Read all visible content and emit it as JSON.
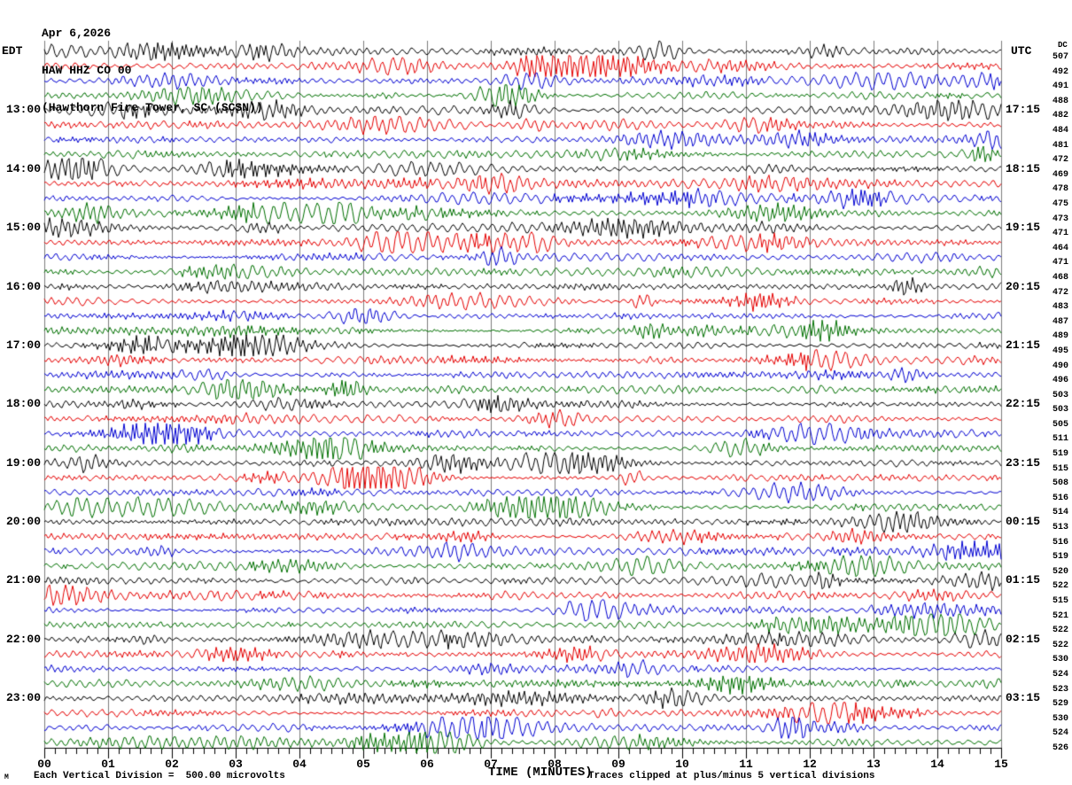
{
  "header": {
    "date_line": "Apr 6,2026",
    "station_line": "HAW HHZ CO 00",
    "location_line": "(Hawthorn Fire Tower, SC (SCSN))"
  },
  "left_axis": {
    "timezone": "EDT"
  },
  "right_axis": {
    "timezone": "UTC",
    "dc_header": "DC"
  },
  "footer": {
    "scale_note": "Each Vertical Division =  500.00 microvolts",
    "axis_title": "TIME (MINUTES)",
    "clip_note": "Traces clipped at plus/minus 5 vertical divisions",
    "corner_mark": "M"
  },
  "chart_data": {
    "type": "line",
    "subtype": "seismogram-helicorder",
    "title": "HAW HHZ CO 00 (Hawthorn Fire Tower, SC (SCSN)) Apr 6,2026",
    "xlabel": "TIME (MINUTES)",
    "x_range_minutes": [
      0,
      15
    ],
    "x_ticks": [
      "00",
      "01",
      "02",
      "03",
      "04",
      "05",
      "06",
      "07",
      "08",
      "09",
      "10",
      "11",
      "12",
      "13",
      "14",
      "15"
    ],
    "minor_ticks_per_minute": 6,
    "minutes_per_row": 15,
    "rows_count": 48,
    "grid": true,
    "grid_color": "#7d7d7d",
    "background_color": "#ffffff",
    "trace_colors": {
      "black": "#000000",
      "red": "#e60000",
      "blue": "#0000d2",
      "green": "#007000"
    },
    "amplitude_scale_microvolts_per_division": 500.0,
    "clip_divisions": 5,
    "rows": [
      {
        "color": "black",
        "dc": 507,
        "edt": "",
        "utc": ""
      },
      {
        "color": "red",
        "dc": 492,
        "edt": "",
        "utc": ""
      },
      {
        "color": "blue",
        "dc": 491,
        "edt": "",
        "utc": ""
      },
      {
        "color": "green",
        "dc": 488,
        "edt": "",
        "utc": ""
      },
      {
        "color": "black",
        "dc": 482,
        "edt": "13:00",
        "utc": "17:15"
      },
      {
        "color": "red",
        "dc": 484,
        "edt": "",
        "utc": ""
      },
      {
        "color": "blue",
        "dc": 481,
        "edt": "",
        "utc": ""
      },
      {
        "color": "green",
        "dc": 472,
        "edt": "",
        "utc": ""
      },
      {
        "color": "black",
        "dc": 469,
        "edt": "14:00",
        "utc": "18:15"
      },
      {
        "color": "red",
        "dc": 478,
        "edt": "",
        "utc": ""
      },
      {
        "color": "blue",
        "dc": 475,
        "edt": "",
        "utc": ""
      },
      {
        "color": "green",
        "dc": 473,
        "edt": "",
        "utc": ""
      },
      {
        "color": "black",
        "dc": 471,
        "edt": "15:00",
        "utc": "19:15"
      },
      {
        "color": "red",
        "dc": 464,
        "edt": "",
        "utc": ""
      },
      {
        "color": "blue",
        "dc": 471,
        "edt": "",
        "utc": ""
      },
      {
        "color": "green",
        "dc": 468,
        "edt": "",
        "utc": ""
      },
      {
        "color": "black",
        "dc": 472,
        "edt": "16:00",
        "utc": "20:15"
      },
      {
        "color": "red",
        "dc": 483,
        "edt": "",
        "utc": ""
      },
      {
        "color": "blue",
        "dc": 487,
        "edt": "",
        "utc": ""
      },
      {
        "color": "green",
        "dc": 489,
        "edt": "",
        "utc": ""
      },
      {
        "color": "black",
        "dc": 495,
        "edt": "17:00",
        "utc": "21:15"
      },
      {
        "color": "red",
        "dc": 490,
        "edt": "",
        "utc": ""
      },
      {
        "color": "blue",
        "dc": 496,
        "edt": "",
        "utc": ""
      },
      {
        "color": "green",
        "dc": 503,
        "edt": "",
        "utc": ""
      },
      {
        "color": "black",
        "dc": 503,
        "edt": "18:00",
        "utc": "22:15"
      },
      {
        "color": "red",
        "dc": 505,
        "edt": "",
        "utc": ""
      },
      {
        "color": "blue",
        "dc": 511,
        "edt": "",
        "utc": ""
      },
      {
        "color": "green",
        "dc": 519,
        "edt": "",
        "utc": ""
      },
      {
        "color": "black",
        "dc": 515,
        "edt": "19:00",
        "utc": "23:15"
      },
      {
        "color": "red",
        "dc": 508,
        "edt": "",
        "utc": ""
      },
      {
        "color": "blue",
        "dc": 516,
        "edt": "",
        "utc": ""
      },
      {
        "color": "green",
        "dc": 514,
        "edt": "",
        "utc": ""
      },
      {
        "color": "black",
        "dc": 513,
        "edt": "20:00",
        "utc": "00:15"
      },
      {
        "color": "red",
        "dc": 516,
        "edt": "",
        "utc": ""
      },
      {
        "color": "blue",
        "dc": 519,
        "edt": "",
        "utc": ""
      },
      {
        "color": "green",
        "dc": 520,
        "edt": "",
        "utc": ""
      },
      {
        "color": "black",
        "dc": 522,
        "edt": "21:00",
        "utc": "01:15"
      },
      {
        "color": "red",
        "dc": 515,
        "edt": "",
        "utc": ""
      },
      {
        "color": "blue",
        "dc": 521,
        "edt": "",
        "utc": ""
      },
      {
        "color": "green",
        "dc": 522,
        "edt": "",
        "utc": ""
      },
      {
        "color": "black",
        "dc": 522,
        "edt": "22:00",
        "utc": "02:15"
      },
      {
        "color": "red",
        "dc": 530,
        "edt": "",
        "utc": ""
      },
      {
        "color": "blue",
        "dc": 524,
        "edt": "",
        "utc": ""
      },
      {
        "color": "green",
        "dc": 523,
        "edt": "",
        "utc": ""
      },
      {
        "color": "black",
        "dc": 529,
        "edt": "23:00",
        "utc": "03:15"
      },
      {
        "color": "red",
        "dc": 530,
        "edt": "",
        "utc": ""
      },
      {
        "color": "blue",
        "dc": 524,
        "edt": "",
        "utc": ""
      },
      {
        "color": "green",
        "dc": 526,
        "edt": "",
        "utc": ""
      }
    ]
  }
}
